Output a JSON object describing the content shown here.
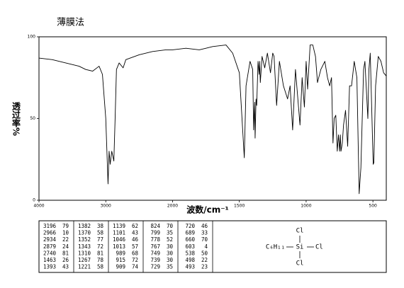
{
  "chart_data": {
    "type": "line",
    "title": "薄膜法",
    "xlabel": "波数/cm⁻¹",
    "ylabel": "透过率%",
    "xlim": [
      4000,
      400
    ],
    "ylim": [
      0,
      100
    ],
    "x_scale_break": 2000,
    "xticks": [
      4000,
      3000,
      2000,
      1500,
      1000,
      500
    ],
    "yticks": [
      0,
      50,
      100
    ],
    "x": [
      4000,
      3800,
      3600,
      3400,
      3300,
      3196,
      3100,
      3050,
      3000,
      2966,
      2950,
      2934,
      2910,
      2879,
      2860,
      2840,
      2800,
      2740,
      2700,
      2500,
      2300,
      2100,
      2000,
      1900,
      1800,
      1750,
      1700,
      1600,
      1550,
      1500,
      1463,
      1450,
      1420,
      1400,
      1393,
      1385,
      1382,
      1375,
      1370,
      1360,
      1352,
      1348,
      1343,
      1330,
      1310,
      1290,
      1267,
      1250,
      1240,
      1221,
      1200,
      1170,
      1139,
      1120,
      1101,
      1080,
      1060,
      1046,
      1030,
      1013,
      1000,
      989,
      970,
      950,
      930,
      915,
      909,
      890,
      860,
      840,
      824,
      810,
      799,
      790,
      778,
      767,
      758,
      749,
      744,
      739,
      729,
      720,
      705,
      689,
      675,
      660,
      640,
      620,
      603,
      590,
      570,
      560,
      538,
      530,
      520,
      498,
      493,
      480,
      460,
      440,
      420,
      400
    ],
    "series": [
      {
        "color": "#000000",
        "values": [
          87,
          86,
          84,
          82,
          80,
          79,
          82,
          77,
          50,
          10,
          30,
          22,
          30,
          24,
          50,
          80,
          84,
          81,
          86,
          89,
          91,
          92,
          92,
          93,
          92,
          93,
          94,
          95,
          90,
          78,
          26,
          70,
          85,
          80,
          43,
          60,
          38,
          62,
          58,
          85,
          77,
          85,
          72,
          88,
          81,
          90,
          78,
          90,
          88,
          58,
          85,
          70,
          62,
          70,
          43,
          80,
          60,
          46,
          75,
          57,
          85,
          68,
          95,
          95,
          88,
          72,
          74,
          80,
          85,
          75,
          70,
          75,
          35,
          50,
          52,
          30,
          40,
          30,
          40,
          30,
          35,
          46,
          55,
          33,
          70,
          70,
          85,
          75,
          4,
          20,
          80,
          85,
          50,
          80,
          90,
          22,
          23,
          70,
          88,
          85,
          78,
          76
        ]
      }
    ]
  },
  "peak_table": [
    [
      [
        3196,
        79
      ],
      [
        2966,
        10
      ],
      [
        2934,
        22
      ],
      [
        2879,
        24
      ],
      [
        2740,
        81
      ],
      [
        1463,
        26
      ],
      [
        1393,
        43
      ]
    ],
    [
      [
        1382,
        38
      ],
      [
        1370,
        58
      ],
      [
        1352,
        77
      ],
      [
        1343,
        72
      ],
      [
        1310,
        81
      ],
      [
        1267,
        78
      ],
      [
        1221,
        58
      ]
    ],
    [
      [
        1139,
        62
      ],
      [
        1101,
        43
      ],
      [
        1046,
        46
      ],
      [
        1013,
        57
      ],
      [
        989,
        68
      ],
      [
        915,
        72
      ],
      [
        909,
        74
      ]
    ],
    [
      [
        824,
        70
      ],
      [
        799,
        35
      ],
      [
        778,
        52
      ],
      [
        767,
        30
      ],
      [
        749,
        30
      ],
      [
        739,
        30
      ],
      [
        729,
        35
      ]
    ],
    [
      [
        720,
        46
      ],
      [
        689,
        33
      ],
      [
        660,
        70
      ],
      [
        603,
        4
      ],
      [
        538,
        50
      ],
      [
        498,
        22
      ],
      [
        493,
        23
      ]
    ]
  ],
  "structure": {
    "top": "Cl",
    "left": "C₆H₁₁",
    "center": "Si",
    "right": "Cl",
    "bottom": "Cl"
  }
}
